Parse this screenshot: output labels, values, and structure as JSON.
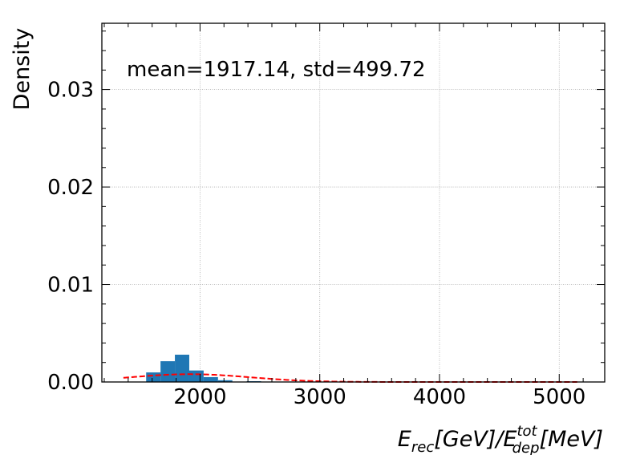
{
  "chart_data": {
    "type": "bar",
    "title": "",
    "ylabel": "Density",
    "xlabel": {
      "E": "E",
      "sub1": "rec",
      "unit1": "[GeV]/",
      "E2": "E",
      "sup2": "tot",
      "sub2": "dep",
      "unit2": "[MeV]"
    },
    "annotation": "mean=1917.14, std=499.72",
    "xlim": [
      1180,
      5380
    ],
    "ylim": [
      0,
      0.0368
    ],
    "xticks": [
      2000,
      3000,
      4000,
      5000
    ],
    "xtick_labels": [
      "2000",
      "3000",
      "4000",
      "5000"
    ],
    "yticks": [
      0.0,
      0.01,
      0.02,
      0.03
    ],
    "ytick_labels": [
      "0.00",
      "0.01",
      "0.02",
      "0.03"
    ],
    "grid": true,
    "histogram": {
      "color": "#1f77b4",
      "bins": [
        {
          "x0": 1550,
          "x1": 1670,
          "value": 0.00098
        },
        {
          "x0": 1670,
          "x1": 1790,
          "value": 0.00213
        },
        {
          "x0": 1790,
          "x1": 1910,
          "value": 0.0028
        },
        {
          "x0": 1910,
          "x1": 2030,
          "value": 0.00118
        },
        {
          "x0": 2030,
          "x1": 2150,
          "value": 0.0005
        },
        {
          "x0": 2150,
          "x1": 2270,
          "value": 0.00018
        },
        {
          "x0": 2270,
          "x1": 2390,
          "value": 3e-05
        },
        {
          "x0": 2390,
          "x1": 2510,
          "value": 8e-05
        }
      ]
    },
    "series": [
      {
        "type": "gaussian-fit",
        "mean": 1917.14,
        "std": 499.72,
        "x_range": [
          1360,
          5150
        ],
        "color": "#ff0000",
        "style": "dashed"
      }
    ]
  }
}
